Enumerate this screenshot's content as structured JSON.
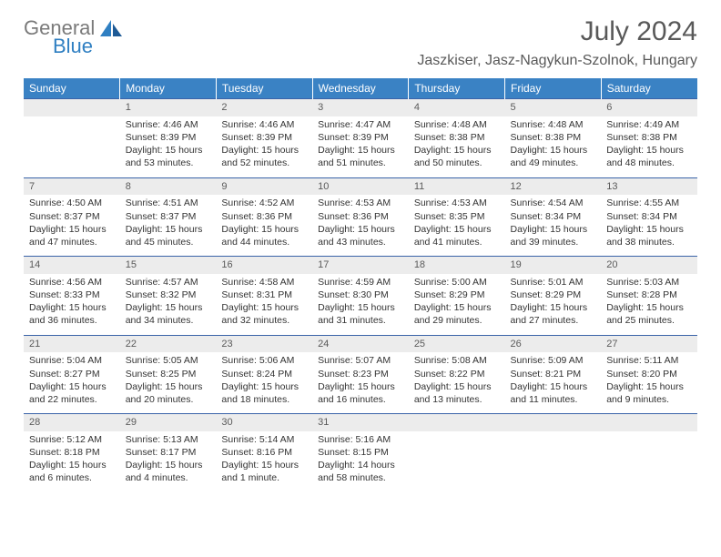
{
  "logo": {
    "word1": "General",
    "word2": "Blue"
  },
  "title": "July 2024",
  "location": "Jaszkiser, Jasz-Nagykun-Szolnok, Hungary",
  "colors": {
    "header_bg": "#3a82c4",
    "header_text": "#ffffff",
    "daynum_bg": "#ececec",
    "row_divider": "#3a63a8",
    "body_text": "#333333",
    "title_text": "#595959",
    "logo_gray": "#7a7a7a",
    "logo_blue": "#2f7fc2"
  },
  "day_headers": [
    "Sunday",
    "Monday",
    "Tuesday",
    "Wednesday",
    "Thursday",
    "Friday",
    "Saturday"
  ],
  "weeks": [
    {
      "nums": [
        "",
        "1",
        "2",
        "3",
        "4",
        "5",
        "6"
      ],
      "details": [
        "",
        "Sunrise: 4:46 AM\nSunset: 8:39 PM\nDaylight: 15 hours and 53 minutes.",
        "Sunrise: 4:46 AM\nSunset: 8:39 PM\nDaylight: 15 hours and 52 minutes.",
        "Sunrise: 4:47 AM\nSunset: 8:39 PM\nDaylight: 15 hours and 51 minutes.",
        "Sunrise: 4:48 AM\nSunset: 8:38 PM\nDaylight: 15 hours and 50 minutes.",
        "Sunrise: 4:48 AM\nSunset: 8:38 PM\nDaylight: 15 hours and 49 minutes.",
        "Sunrise: 4:49 AM\nSunset: 8:38 PM\nDaylight: 15 hours and 48 minutes."
      ]
    },
    {
      "nums": [
        "7",
        "8",
        "9",
        "10",
        "11",
        "12",
        "13"
      ],
      "details": [
        "Sunrise: 4:50 AM\nSunset: 8:37 PM\nDaylight: 15 hours and 47 minutes.",
        "Sunrise: 4:51 AM\nSunset: 8:37 PM\nDaylight: 15 hours and 45 minutes.",
        "Sunrise: 4:52 AM\nSunset: 8:36 PM\nDaylight: 15 hours and 44 minutes.",
        "Sunrise: 4:53 AM\nSunset: 8:36 PM\nDaylight: 15 hours and 43 minutes.",
        "Sunrise: 4:53 AM\nSunset: 8:35 PM\nDaylight: 15 hours and 41 minutes.",
        "Sunrise: 4:54 AM\nSunset: 8:34 PM\nDaylight: 15 hours and 39 minutes.",
        "Sunrise: 4:55 AM\nSunset: 8:34 PM\nDaylight: 15 hours and 38 minutes."
      ]
    },
    {
      "nums": [
        "14",
        "15",
        "16",
        "17",
        "18",
        "19",
        "20"
      ],
      "details": [
        "Sunrise: 4:56 AM\nSunset: 8:33 PM\nDaylight: 15 hours and 36 minutes.",
        "Sunrise: 4:57 AM\nSunset: 8:32 PM\nDaylight: 15 hours and 34 minutes.",
        "Sunrise: 4:58 AM\nSunset: 8:31 PM\nDaylight: 15 hours and 32 minutes.",
        "Sunrise: 4:59 AM\nSunset: 8:30 PM\nDaylight: 15 hours and 31 minutes.",
        "Sunrise: 5:00 AM\nSunset: 8:29 PM\nDaylight: 15 hours and 29 minutes.",
        "Sunrise: 5:01 AM\nSunset: 8:29 PM\nDaylight: 15 hours and 27 minutes.",
        "Sunrise: 5:03 AM\nSunset: 8:28 PM\nDaylight: 15 hours and 25 minutes."
      ]
    },
    {
      "nums": [
        "21",
        "22",
        "23",
        "24",
        "25",
        "26",
        "27"
      ],
      "details": [
        "Sunrise: 5:04 AM\nSunset: 8:27 PM\nDaylight: 15 hours and 22 minutes.",
        "Sunrise: 5:05 AM\nSunset: 8:25 PM\nDaylight: 15 hours and 20 minutes.",
        "Sunrise: 5:06 AM\nSunset: 8:24 PM\nDaylight: 15 hours and 18 minutes.",
        "Sunrise: 5:07 AM\nSunset: 8:23 PM\nDaylight: 15 hours and 16 minutes.",
        "Sunrise: 5:08 AM\nSunset: 8:22 PM\nDaylight: 15 hours and 13 minutes.",
        "Sunrise: 5:09 AM\nSunset: 8:21 PM\nDaylight: 15 hours and 11 minutes.",
        "Sunrise: 5:11 AM\nSunset: 8:20 PM\nDaylight: 15 hours and 9 minutes."
      ]
    },
    {
      "nums": [
        "28",
        "29",
        "30",
        "31",
        "",
        "",
        ""
      ],
      "details": [
        "Sunrise: 5:12 AM\nSunset: 8:18 PM\nDaylight: 15 hours and 6 minutes.",
        "Sunrise: 5:13 AM\nSunset: 8:17 PM\nDaylight: 15 hours and 4 minutes.",
        "Sunrise: 5:14 AM\nSunset: 8:16 PM\nDaylight: 15 hours and 1 minute.",
        "Sunrise: 5:16 AM\nSunset: 8:15 PM\nDaylight: 14 hours and 58 minutes.",
        "",
        "",
        ""
      ]
    }
  ]
}
